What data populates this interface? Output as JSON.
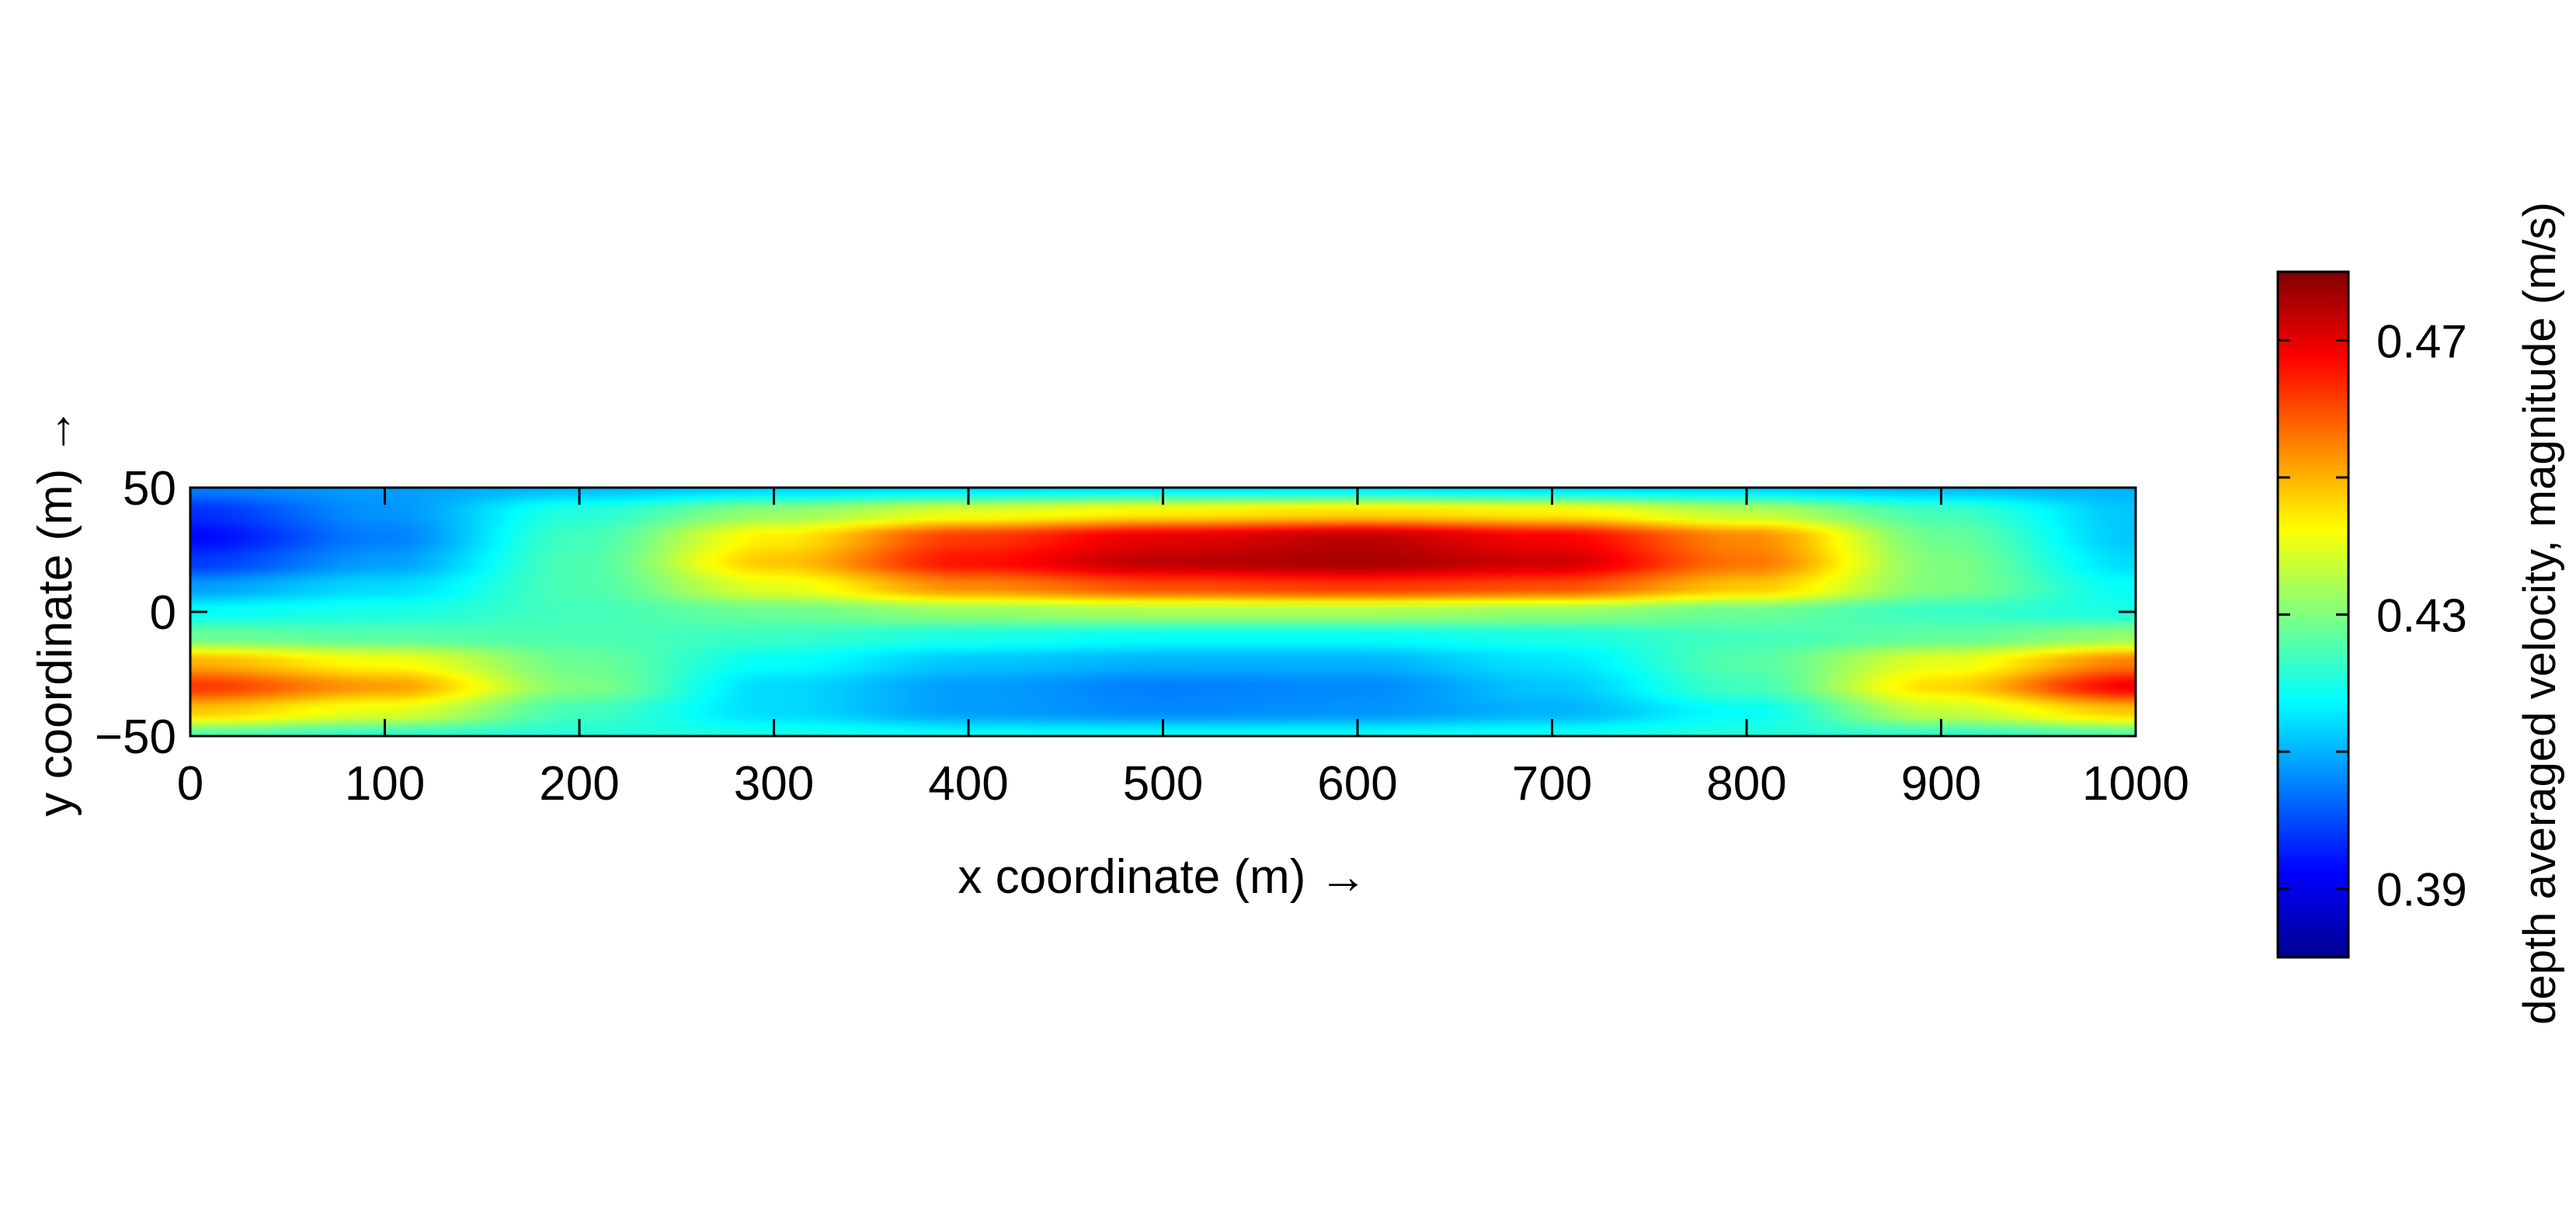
{
  "chart_data": {
    "type": "heatmap",
    "title": "",
    "xlabel": "x coordinate (m) →",
    "ylabel": "y coordinate (m) →",
    "xlim": [
      0,
      1000
    ],
    "ylim": [
      -50,
      50
    ],
    "x_ticks": [
      "0",
      "100",
      "200",
      "300",
      "400",
      "500",
      "600",
      "700",
      "800",
      "900",
      "1000"
    ],
    "y_ticks": [
      "−50",
      "0",
      "50"
    ],
    "grid": false,
    "colormap": "jet",
    "colorbar": {
      "label": "depth averaged velocity, magnitude (m/s)",
      "range": [
        0.38,
        0.48
      ],
      "tick_values": [
        0.39,
        0.43,
        0.47
      ],
      "tick_labels": [
        "0.39",
        "0.43",
        "0.47"
      ],
      "minor_tick_values": [
        0.41,
        0.45
      ],
      "placement": "right"
    },
    "field": {
      "x": [
        0,
        100,
        200,
        300,
        400,
        500,
        600,
        700,
        800,
        900,
        1000
      ],
      "y": [
        -50,
        -40,
        -30,
        -20,
        -10,
        0,
        10,
        20,
        30,
        40,
        50
      ],
      "values": [
        [
          0.425,
          0.422,
          0.421,
          0.42,
          0.418,
          0.418,
          0.418,
          0.419,
          0.421,
          0.422,
          0.425
        ],
        [
          0.448,
          0.44,
          0.424,
          0.414,
          0.408,
          0.406,
          0.407,
          0.41,
          0.418,
          0.437,
          0.448
        ],
        [
          0.462,
          0.452,
          0.43,
          0.414,
          0.408,
          0.405,
          0.406,
          0.412,
          0.424,
          0.446,
          0.468
        ],
        [
          0.45,
          0.442,
          0.428,
          0.418,
          0.412,
          0.41,
          0.41,
          0.415,
          0.426,
          0.44,
          0.455
        ],
        [
          0.428,
          0.426,
          0.425,
          0.423,
          0.42,
          0.418,
          0.418,
          0.42,
          0.424,
          0.427,
          0.432
        ],
        [
          0.418,
          0.42,
          0.424,
          0.428,
          0.432,
          0.434,
          0.434,
          0.432,
          0.428,
          0.423,
          0.42
        ],
        [
          0.408,
          0.414,
          0.425,
          0.44,
          0.454,
          0.46,
          0.462,
          0.46,
          0.448,
          0.43,
          0.418
        ],
        [
          0.398,
          0.408,
          0.425,
          0.448,
          0.466,
          0.474,
          0.476,
          0.472,
          0.456,
          0.43,
          0.414
        ],
        [
          0.393,
          0.405,
          0.424,
          0.444,
          0.462,
          0.47,
          0.474,
          0.468,
          0.454,
          0.428,
          0.412
        ],
        [
          0.397,
          0.407,
          0.421,
          0.432,
          0.44,
          0.444,
          0.446,
          0.444,
          0.436,
          0.424,
          0.412
        ],
        [
          0.405,
          0.408,
          0.411,
          0.413,
          0.414,
          0.415,
          0.415,
          0.414,
          0.413,
          0.411,
          0.41
        ]
      ]
    }
  }
}
